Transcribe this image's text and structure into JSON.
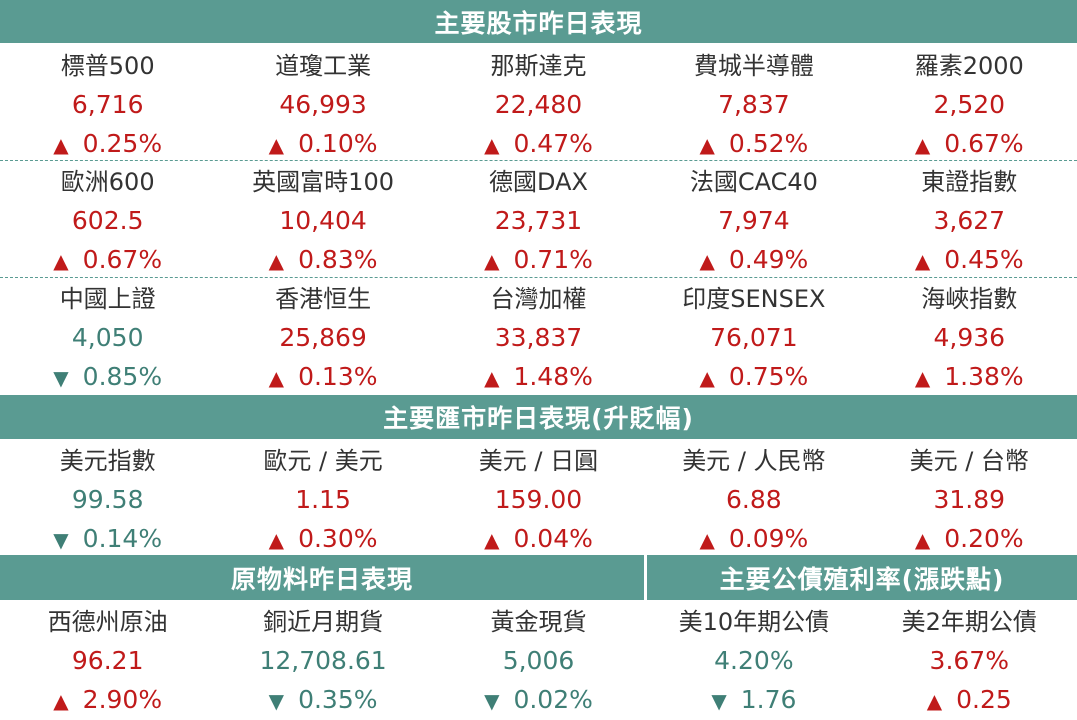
{
  "colors": {
    "header": "#5a9b92",
    "up": "#c01a1a",
    "down": "#3f7f76"
  },
  "stocks": {
    "title": "主要股市昨日表現",
    "rows": [
      [
        {
          "name": "標普500",
          "value": "6,716",
          "dir": "up",
          "arrow": "▲",
          "change": "0.25%"
        },
        {
          "name": "道瓊工業",
          "value": "46,993",
          "dir": "up",
          "arrow": "▲",
          "change": "0.10%"
        },
        {
          "name": "那斯達克",
          "value": "22,480",
          "dir": "up",
          "arrow": "▲",
          "change": "0.47%"
        },
        {
          "name": "費城半導體",
          "value": "7,837",
          "dir": "up",
          "arrow": "▲",
          "change": "0.52%"
        },
        {
          "name": "羅素2000",
          "value": "2,520",
          "dir": "up",
          "arrow": "▲",
          "change": "0.67%"
        }
      ],
      [
        {
          "name": "歐洲600",
          "value": "602.5",
          "dir": "up",
          "arrow": "▲",
          "change": "0.67%"
        },
        {
          "name": "英國富時100",
          "value": "10,404",
          "dir": "up",
          "arrow": "▲",
          "change": "0.83%"
        },
        {
          "name": "德國DAX",
          "value": "23,731",
          "dir": "up",
          "arrow": "▲",
          "change": "0.71%"
        },
        {
          "name": "法國CAC40",
          "value": "7,974",
          "dir": "up",
          "arrow": "▲",
          "change": "0.49%"
        },
        {
          "name": "東證指數",
          "value": "3,627",
          "dir": "up",
          "arrow": "▲",
          "change": "0.45%"
        }
      ],
      [
        {
          "name": "中國上證",
          "value": "4,050",
          "dir": "down",
          "arrow": "▼",
          "change": "0.85%"
        },
        {
          "name": "香港恒生",
          "value": "25,869",
          "dir": "up",
          "arrow": "▲",
          "change": "0.13%"
        },
        {
          "name": "台灣加權",
          "value": "33,837",
          "dir": "up",
          "arrow": "▲",
          "change": "1.48%"
        },
        {
          "name": "印度SENSEX",
          "value": "76,071",
          "dir": "up",
          "arrow": "▲",
          "change": "0.75%"
        },
        {
          "name": "海峽指數",
          "value": "4,936",
          "dir": "up",
          "arrow": "▲",
          "change": "1.38%"
        }
      ]
    ]
  },
  "fx": {
    "title": "主要匯市昨日表現(升貶幅)",
    "items": [
      {
        "name": "美元指數",
        "value": "99.58",
        "dir": "down",
        "arrow": "▼",
        "change": "0.14%"
      },
      {
        "name": "歐元 / 美元",
        "value": "1.15",
        "dir": "up",
        "arrow": "▲",
        "change": "0.30%"
      },
      {
        "name": "美元 / 日圓",
        "value": "159.00",
        "dir": "up",
        "arrow": "▲",
        "change": "0.04%"
      },
      {
        "name": "美元 / 人民幣",
        "value": "6.88",
        "dir": "up",
        "arrow": "▲",
        "change": "0.09%"
      },
      {
        "name": "美元 / 台幣",
        "value": "31.89",
        "dir": "up",
        "arrow": "▲",
        "change": "0.20%"
      }
    ]
  },
  "bottom": {
    "commodities_title": "原物料昨日表現",
    "bonds_title": "主要公債殖利率(漲跌點)",
    "items": [
      {
        "name": "西德州原油",
        "value": "96.21",
        "vdir": "up",
        "dir": "up",
        "arrow": "▲",
        "change": "2.90%"
      },
      {
        "name": "銅近月期貨",
        "value": "12,708.61",
        "vdir": "down",
        "dir": "down",
        "arrow": "▼",
        "change": "0.35%"
      },
      {
        "name": "黃金現貨",
        "value": "5,006",
        "vdir": "down",
        "dir": "down",
        "arrow": "▼",
        "change": "0.02%"
      },
      {
        "name": "美10年期公債",
        "value": "4.20%",
        "vdir": "down",
        "dir": "down",
        "arrow": "▼",
        "change": "1.76"
      },
      {
        "name": "美2年期公債",
        "value": "3.67%",
        "vdir": "up",
        "dir": "up",
        "arrow": "▲",
        "change": "0.25"
      }
    ]
  }
}
